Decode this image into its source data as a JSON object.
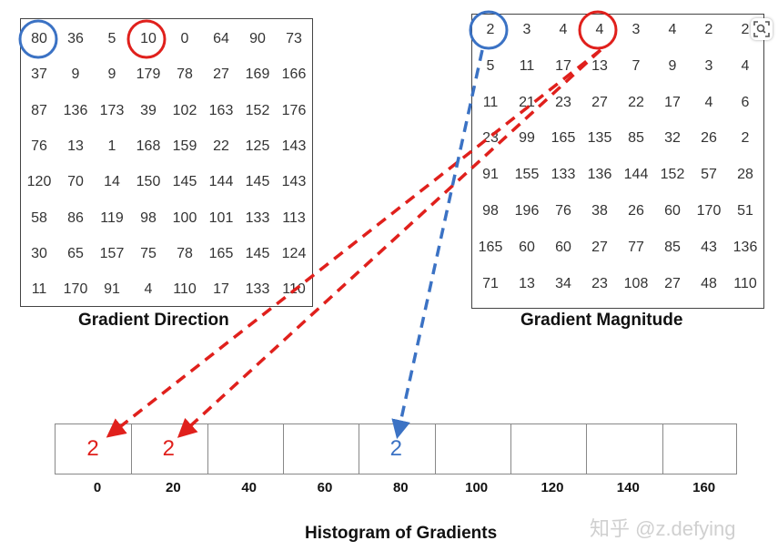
{
  "gradient_direction": {
    "caption": "Gradient Direction",
    "rows": [
      [
        80,
        36,
        5,
        10,
        0,
        64,
        90,
        73
      ],
      [
        37,
        9,
        9,
        179,
        78,
        27,
        169,
        166
      ],
      [
        87,
        136,
        173,
        39,
        102,
        163,
        152,
        176
      ],
      [
        76,
        13,
        1,
        168,
        159,
        22,
        125,
        143
      ],
      [
        120,
        70,
        14,
        150,
        145,
        144,
        145,
        143
      ],
      [
        58,
        86,
        119,
        98,
        100,
        101,
        133,
        113
      ],
      [
        30,
        65,
        157,
        75,
        78,
        165,
        145,
        124
      ],
      [
        11,
        170,
        91,
        4,
        110,
        17,
        133,
        110
      ]
    ]
  },
  "gradient_magnitude": {
    "caption": "Gradient Magnitude",
    "rows": [
      [
        2,
        3,
        4,
        4,
        3,
        4,
        2,
        2
      ],
      [
        5,
        11,
        17,
        13,
        7,
        9,
        3,
        4
      ],
      [
        11,
        21,
        23,
        27,
        22,
        17,
        4,
        6
      ],
      [
        23,
        99,
        165,
        135,
        85,
        32,
        26,
        2
      ],
      [
        91,
        155,
        133,
        136,
        144,
        152,
        57,
        28
      ],
      [
        98,
        196,
        76,
        38,
        26,
        60,
        170,
        51
      ],
      [
        165,
        60,
        60,
        27,
        77,
        85,
        43,
        136
      ],
      [
        71,
        13,
        34,
        23,
        108,
        27,
        48,
        110
      ]
    ]
  },
  "histogram": {
    "title": "Histogram of Gradients",
    "bins": [
      "0",
      "20",
      "40",
      "60",
      "80",
      "100",
      "120",
      "140",
      "160"
    ],
    "values": [
      {
        "bin": 0,
        "text": "2",
        "color": "#e0201c"
      },
      {
        "bin": 1,
        "text": "2",
        "color": "#e0201c"
      },
      {
        "bin": 4,
        "text": "2",
        "color": "#3b72c4"
      }
    ]
  },
  "highlights": {
    "blue": "#3b72c4",
    "red": "#e0201c"
  },
  "watermark": "知乎 @z.defying",
  "lens_icon": "lens-search-icon"
}
